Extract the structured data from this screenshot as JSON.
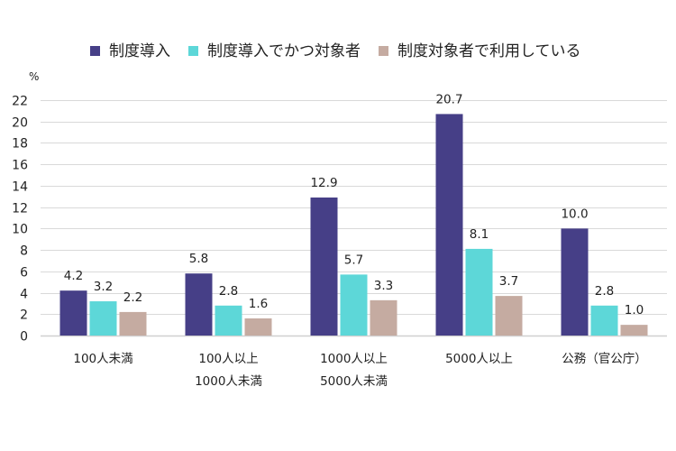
{
  "chart_data": {
    "type": "bar",
    "title": "",
    "xlabel": "",
    "ylabel": "%",
    "ylim": [
      0,
      22
    ],
    "yticks": [
      0,
      2,
      4,
      6,
      8,
      10,
      12,
      14,
      16,
      18,
      20,
      22
    ],
    "grid": true,
    "legend_position": "top",
    "categories": [
      [
        "100人未満"
      ],
      [
        "100人以上",
        "1000人未満"
      ],
      [
        "1000人以上",
        "5000人未満"
      ],
      [
        "5000人以上"
      ],
      [
        "公務（官公庁）"
      ]
    ],
    "series": [
      {
        "name": "制度導入",
        "color": "#463F87",
        "values": [
          4.2,
          5.8,
          12.9,
          20.7,
          10.0
        ],
        "labels": [
          "4.2",
          "5.8",
          "12.9",
          "20.7",
          "10.0"
        ]
      },
      {
        "name": "制度導入でかつ対象者",
        "color": "#5DD7D8",
        "values": [
          3.2,
          2.8,
          5.7,
          8.1,
          2.8
        ],
        "labels": [
          "3.2",
          "2.8",
          "5.7",
          "8.1",
          "2.8"
        ]
      },
      {
        "name": "制度対象者で利用している",
        "color": "#C5ABA1",
        "values": [
          2.2,
          1.6,
          3.3,
          3.7,
          1.0
        ],
        "labels": [
          "2.2",
          "1.6",
          "3.3",
          "3.7",
          "1.0"
        ]
      }
    ]
  },
  "legend": {
    "items": [
      {
        "label": "制度導入",
        "color": "#463F87"
      },
      {
        "label": "制度導入でかつ対象者",
        "color": "#5DD7D8"
      },
      {
        "label": "制度対象者で利用している",
        "color": "#C5ABA1"
      }
    ]
  }
}
